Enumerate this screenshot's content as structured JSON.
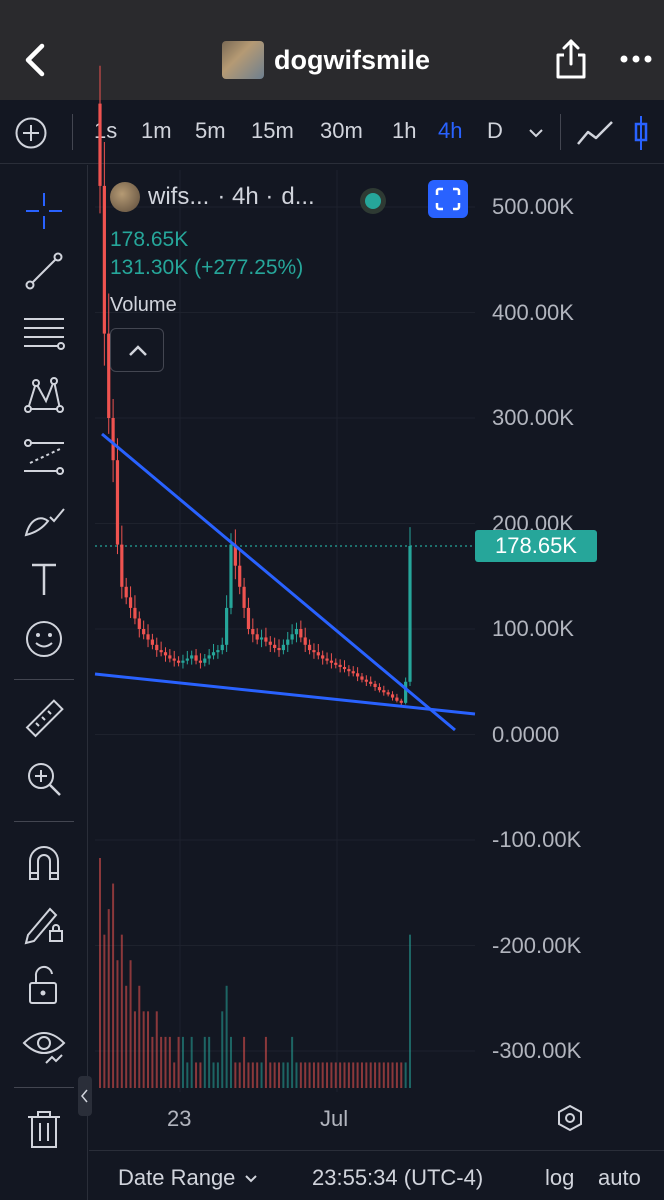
{
  "header": {
    "title": "dogwifsmile",
    "back_icon": "chevron-left-icon",
    "share_icon": "share-icon",
    "more_icon": "more-dots-icon"
  },
  "toolbar": {
    "intervals": [
      {
        "label": "1s",
        "active": false
      },
      {
        "label": "1m",
        "active": false
      },
      {
        "label": "5m",
        "active": false
      },
      {
        "label": "15m",
        "active": false
      },
      {
        "label": "30m",
        "active": false
      },
      {
        "label": "1h",
        "active": false
      },
      {
        "label": "4h",
        "active": true
      },
      {
        "label": "D",
        "active": false
      }
    ]
  },
  "legend": {
    "symbol": "wifs...",
    "interval": "· 4h ·",
    "exchange": "d...",
    "price": "178.65K",
    "change": "131.30K (+277.25%)",
    "volume_label": "Volume"
  },
  "price_axis": {
    "labels": [
      "500.00K",
      "400.00K",
      "300.00K",
      "200.00K",
      "100.00K",
      "0.0000",
      "-100.00K",
      "-200.00K",
      "-300.00K"
    ],
    "current": "178.65K"
  },
  "time_axis": {
    "labels": [
      "23",
      "Jul"
    ]
  },
  "bottom_bar": {
    "date_range": "Date Range",
    "clock": "23:55:34 (UTC-4)",
    "log": "log",
    "auto": "auto"
  },
  "colors": {
    "background": "#131722",
    "up": "#26a69a",
    "down": "#ef5350",
    "trendline": "#2962ff",
    "accent": "#2962ff"
  },
  "chart_data": {
    "type": "candlestick",
    "ylim": [
      -350000,
      550000
    ],
    "current_price": 178650,
    "close_series_k": [
      520,
      380,
      300,
      260,
      180,
      140,
      130,
      120,
      110,
      100,
      95,
      90,
      85,
      80,
      78,
      75,
      72,
      70,
      68,
      70,
      72,
      75,
      70,
      68,
      72,
      75,
      78,
      80,
      85,
      120,
      180,
      160,
      140,
      120,
      100,
      95,
      90,
      92,
      88,
      85,
      82,
      80,
      85,
      90,
      95,
      100,
      92,
      85,
      80,
      78,
      75,
      72,
      70,
      68,
      66,
      64,
      62,
      60,
      58,
      55,
      52,
      50,
      48,
      45,
      42,
      40,
      38,
      35,
      32,
      30,
      50,
      178.65
    ],
    "volume_series": [
      9,
      6,
      7,
      8,
      5,
      6,
      4,
      5,
      3,
      4,
      3,
      3,
      2,
      3,
      2,
      2,
      2,
      1,
      2,
      2,
      1,
      2,
      1,
      1,
      2,
      2,
      1,
      1,
      3,
      4,
      2,
      1,
      1,
      2,
      1,
      1,
      1,
      1,
      2,
      1,
      1,
      1,
      1,
      1,
      2,
      1,
      1,
      1,
      1,
      1,
      1,
      1,
      1,
      1,
      1,
      1,
      1,
      1,
      1,
      1,
      1,
      1,
      1,
      1,
      1,
      1,
      1,
      1,
      1,
      1,
      1,
      6
    ]
  }
}
